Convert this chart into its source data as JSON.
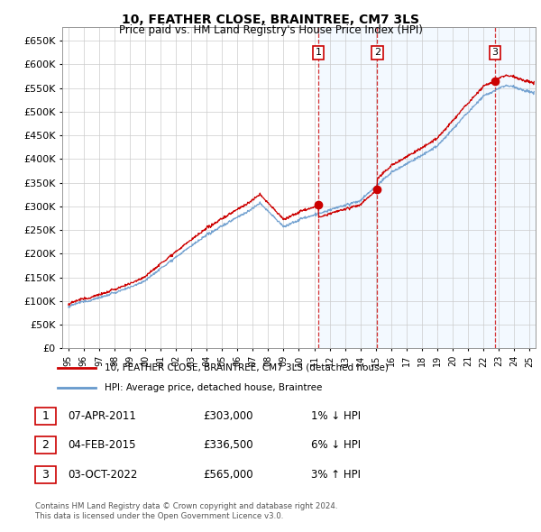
{
  "title": "10, FEATHER CLOSE, BRAINTREE, CM7 3LS",
  "subtitle": "Price paid vs. HM Land Registry's House Price Index (HPI)",
  "ylim": [
    0,
    680000
  ],
  "yticks": [
    0,
    50000,
    100000,
    150000,
    200000,
    250000,
    300000,
    350000,
    400000,
    450000,
    500000,
    550000,
    600000,
    650000
  ],
  "xlim_start": 1994.6,
  "xlim_end": 2025.4,
  "sale_dates": [
    2011.27,
    2015.09,
    2022.76
  ],
  "sale_prices": [
    303000,
    336500,
    565000
  ],
  "sale_labels": [
    "1",
    "2",
    "3"
  ],
  "sale_color": "#cc0000",
  "hpi_line_color": "#6699cc",
  "background_shading_color": "#ddeeff",
  "legend_entries": [
    "10, FEATHER CLOSE, BRAINTREE, CM7 3LS (detached house)",
    "HPI: Average price, detached house, Braintree"
  ],
  "table_rows": [
    [
      "1",
      "07-APR-2011",
      "£303,000",
      "1% ↓ HPI"
    ],
    [
      "2",
      "04-FEB-2015",
      "£336,500",
      "6% ↓ HPI"
    ],
    [
      "3",
      "03-OCT-2022",
      "£565,000",
      "3% ↑ HPI"
    ]
  ],
  "footnote1": "Contains HM Land Registry data © Crown copyright and database right 2024.",
  "footnote2": "This data is licensed under the Open Government Licence v3.0.",
  "grid_color": "#cccccc",
  "spine_color": "#999999",
  "hpi_seed": 12345,
  "prop_seed": 99
}
